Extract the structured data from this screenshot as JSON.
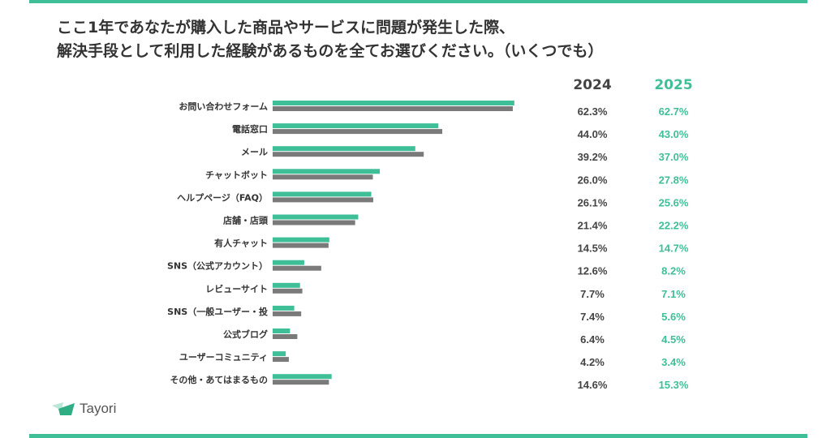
{
  "title_lines": [
    "ここ1年であなたが購入した商品やサービスに問題が発生した際、",
    "解決手段として利用した経験があるものを全てお選びください。（いくつでも）"
  ],
  "logo_text": "Tayori",
  "colors": {
    "2024": "#7a7a7a",
    "2025": "#3fbf97",
    "accent": "#3fbf97"
  },
  "chart_data": {
    "type": "bar",
    "orientation": "horizontal",
    "categories": [
      "お問い合わせフォーム",
      "電話窓口",
      "メール",
      "チャットボット",
      "ヘルプページ（FAQ）",
      "店舗・店頭",
      "有人チャット",
      "SNS（公式アカウント）",
      "レビューサイト",
      "SNS（一般ユーザー・投",
      "公式ブログ",
      "ユーザーコミュニティ",
      "その他・あてはまるもの"
    ],
    "series": [
      {
        "name": "2025",
        "values": [
          62.7,
          43.0,
          37.0,
          27.8,
          25.6,
          22.2,
          14.7,
          8.2,
          7.1,
          5.6,
          4.5,
          3.4,
          15.3
        ]
      },
      {
        "name": "2024",
        "values": [
          62.3,
          44.0,
          39.2,
          26.0,
          26.1,
          21.4,
          14.5,
          12.6,
          7.7,
          7.4,
          6.4,
          4.2,
          14.6
        ]
      }
    ],
    "data_labels_2024": [
      "62.3%",
      "44.0%",
      "39.2%",
      "26.0%",
      "26.1%",
      "21.4%",
      "14.5%",
      "12.6%",
      "7.7%",
      "7.4%",
      "6.4%",
      "4.2%",
      "14.6%"
    ],
    "data_labels_2025": [
      "62.7%",
      "43.0%",
      "37.0%",
      "27.8%",
      "25.6%",
      "22.2%",
      "14.7%",
      "8.2%",
      "7.1%",
      "5.6%",
      "4.5%",
      "3.4%",
      "15.3%"
    ],
    "column_headers": [
      "2024",
      "2025"
    ],
    "xlabel": "",
    "ylabel": "",
    "grid": false
  }
}
